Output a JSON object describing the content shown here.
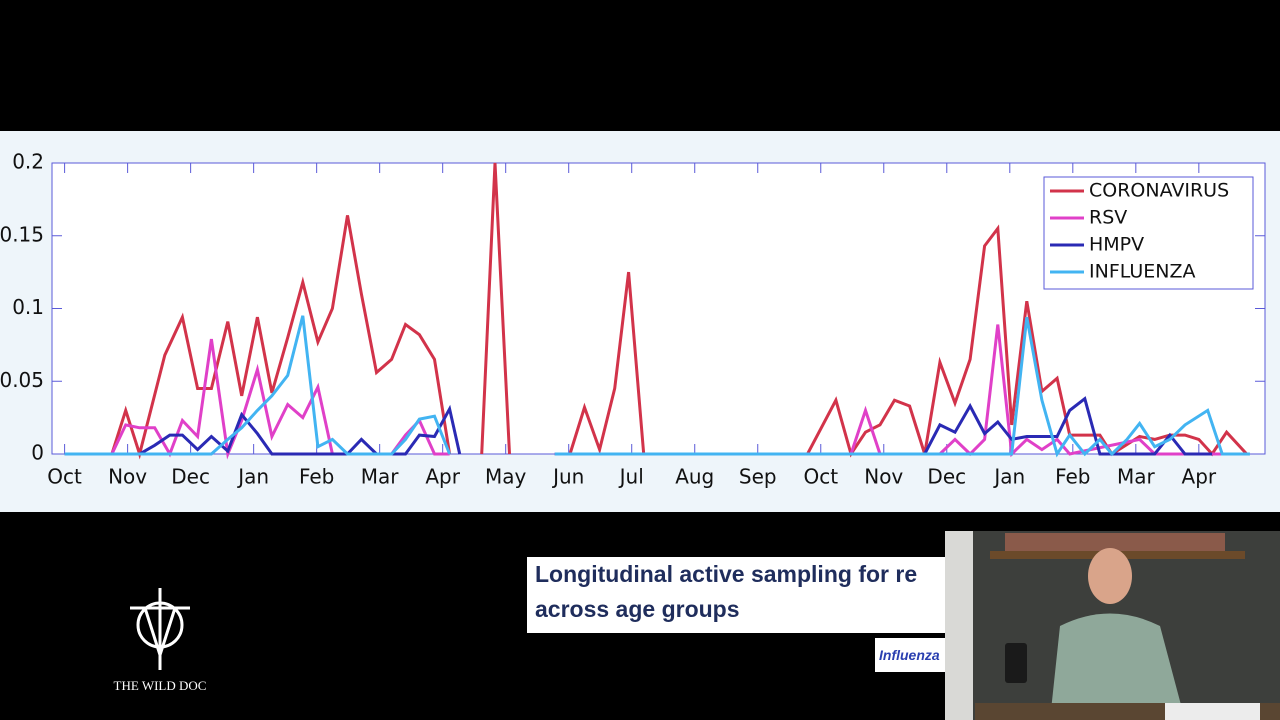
{
  "chart_data": {
    "type": "line",
    "xlim": [
      -0.2,
      19.05
    ],
    "ylim": [
      0,
      0.2
    ],
    "xticks": [
      {
        "value": 0,
        "label": "Oct"
      },
      {
        "value": 1,
        "label": "Nov"
      },
      {
        "value": 2,
        "label": "Dec"
      },
      {
        "value": 3,
        "label": "Jan"
      },
      {
        "value": 4,
        "label": "Feb"
      },
      {
        "value": 5,
        "label": "Mar"
      },
      {
        "value": 6,
        "label": "Apr"
      },
      {
        "value": 7,
        "label": "May"
      },
      {
        "value": 8,
        "label": "Jun"
      },
      {
        "value": 9,
        "label": "Jul"
      },
      {
        "value": 10,
        "label": "Aug"
      },
      {
        "value": 11,
        "label": "Sep"
      },
      {
        "value": 12,
        "label": "Oct"
      },
      {
        "value": 13,
        "label": "Nov"
      },
      {
        "value": 14,
        "label": "Dec"
      },
      {
        "value": 15,
        "label": "Jan"
      },
      {
        "value": 16,
        "label": "Feb"
      },
      {
        "value": 17,
        "label": "Mar"
      },
      {
        "value": 18,
        "label": "Apr"
      }
    ],
    "yticks": [
      0,
      0.05,
      0.1,
      0.15,
      0.2
    ],
    "legend": "upper right",
    "series": [
      {
        "name": "CORONAVIRUS",
        "color": "#d2334a",
        "x": [
          0,
          0.75,
          0.97,
          1.19,
          1.59,
          1.87,
          2.11,
          2.33,
          2.59,
          2.81,
          3.06,
          3.29,
          3.54,
          3.78,
          4.02,
          4.25,
          4.49,
          4.71,
          4.95,
          5.19,
          5.41,
          5.63,
          5.87,
          6.11,
          6.4,
          6.62,
          6.83,
          7.06,
          7.5,
          8.02,
          8.25,
          8.49,
          8.73,
          8.95,
          9.19,
          11.79,
          12.24,
          12.48,
          12.71,
          12.94,
          13.17,
          13.41,
          13.65,
          13.89,
          14.13,
          14.37,
          14.6,
          14.81,
          15.03,
          15.27,
          15.51,
          15.75,
          15.95,
          16.19,
          16.43,
          16.62,
          17.06,
          17.3,
          17.54,
          17.78,
          18.0,
          18.21,
          18.44,
          18.76
        ],
        "values": [
          0,
          0,
          0.03,
          0,
          0.068,
          0.094,
          0.045,
          0.045,
          0.091,
          0.04,
          0.094,
          0.042,
          0.08,
          0.118,
          0.077,
          0.1,
          0.164,
          0.11,
          0.056,
          0.065,
          0.089,
          0.082,
          0.065,
          0,
          null,
          0,
          0.2,
          0,
          null,
          0,
          0.032,
          0.003,
          0.045,
          0.125,
          0,
          0,
          0.037,
          0,
          0.015,
          0.02,
          0.037,
          0.033,
          0,
          0.063,
          0.035,
          0.065,
          0.143,
          0.155,
          0.02,
          0.105,
          0.043,
          0.052,
          0.013,
          0.013,
          0.013,
          0,
          0.012,
          0.01,
          0.013,
          0.013,
          0.01,
          0,
          0.015,
          0
        ]
      },
      {
        "name": "RSV",
        "color": "#e040c8",
        "x": [
          0,
          0.75,
          0.97,
          1.19,
          1.43,
          1.67,
          1.87,
          2.11,
          2.33,
          2.59,
          2.81,
          3.06,
          3.29,
          3.54,
          3.78,
          4.02,
          4.25,
          5.19,
          5.41,
          5.63,
          5.87,
          6.11,
          6.4,
          7.78,
          12.48,
          12.71,
          12.94,
          13.89,
          14.13,
          14.37,
          14.6,
          14.81,
          15.03,
          15.27,
          15.51,
          15.75,
          15.95,
          17.06,
          17.3,
          18.76
        ],
        "values": [
          0,
          0,
          0.02,
          0.018,
          0.018,
          0,
          0.023,
          0.012,
          0.079,
          0,
          0.023,
          0.058,
          0.012,
          0.034,
          0.025,
          0.046,
          0,
          0,
          0.013,
          0.023,
          0,
          0,
          null,
          0,
          0,
          0.03,
          0,
          0,
          0.01,
          0,
          0.01,
          0.089,
          0,
          0.01,
          0.003,
          0.01,
          0,
          0.01,
          0,
          0
        ]
      },
      {
        "name": "HMPV",
        "color": "#2a2ab4",
        "x": [
          0,
          1.19,
          1.43,
          1.67,
          1.87,
          2.11,
          2.33,
          2.59,
          2.81,
          3.06,
          3.29,
          4.49,
          4.71,
          4.95,
          5.41,
          5.63,
          5.87,
          6.11,
          6.27,
          6.4,
          7.78,
          13.65,
          13.89,
          14.13,
          14.37,
          14.6,
          14.81,
          15.03,
          15.27,
          15.51,
          15.75,
          15.95,
          16.19,
          16.43,
          17.3,
          17.54,
          17.78,
          18.21
        ],
        "values": [
          0,
          0,
          0.006,
          0.013,
          0.013,
          0.003,
          0.012,
          0.002,
          0.027,
          0.014,
          0,
          0,
          0.01,
          0,
          0,
          0.013,
          0.012,
          0.031,
          0,
          null,
          0,
          0,
          0.02,
          0.015,
          0.033,
          0.014,
          0.022,
          0.01,
          0.012,
          0.012,
          0.012,
          0.03,
          0.038,
          0,
          0,
          0.013,
          0,
          0
        ]
      },
      {
        "name": "INFLUENZA",
        "color": "#42b4f2",
        "x": [
          0,
          2.33,
          2.59,
          2.81,
          3.06,
          3.29,
          3.54,
          3.78,
          4.02,
          4.25,
          4.49,
          5.19,
          5.41,
          5.63,
          5.87,
          6.11,
          6.4,
          7.78,
          15.03,
          15.27,
          15.51,
          15.75,
          15.95,
          16.19,
          16.43,
          16.62,
          16.86,
          17.06,
          17.3,
          17.54,
          17.78,
          18.14,
          18.37,
          18.81
        ],
        "values": [
          0,
          0,
          0.01,
          0.018,
          0.03,
          0.04,
          0.054,
          0.095,
          0.005,
          0.01,
          0,
          0,
          0.01,
          0.024,
          0.026,
          0,
          null,
          0,
          0,
          0.094,
          0.037,
          0,
          0.013,
          0,
          0.01,
          0,
          0.01,
          0.021,
          0.005,
          0.01,
          0.02,
          0.03,
          0,
          0
        ]
      }
    ]
  },
  "slide": {
    "title_lines": [
      "Longitudinal active sampling for re",
      "across age groups"
    ],
    "tag": "Influenza"
  },
  "logo": {
    "text": "THE WILD DOC"
  }
}
